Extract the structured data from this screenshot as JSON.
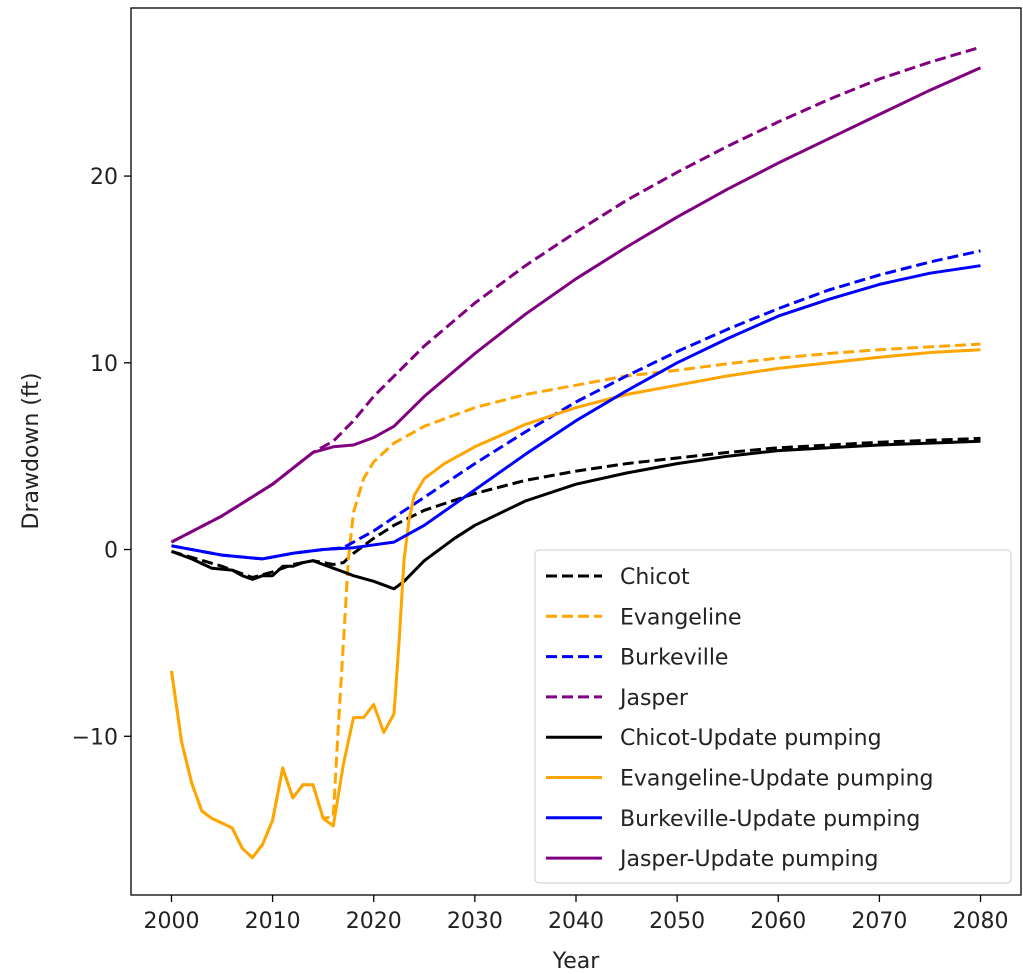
{
  "chart_data": {
    "type": "line",
    "title": "",
    "xlabel": "Year",
    "ylabel": "Drawdown (ft)",
    "xlim": [
      1996,
      2084
    ],
    "ylim": [
      -18.5,
      29
    ],
    "x_ticks": [
      2000,
      2010,
      2020,
      2030,
      2040,
      2050,
      2060,
      2070,
      2080
    ],
    "y_ticks": [
      -10,
      0,
      10,
      20
    ],
    "y_tick_labels": [
      "−10",
      "0",
      "10",
      "20"
    ],
    "grid": false,
    "legend_position": "lower-right",
    "series": [
      {
        "name": "Chicot",
        "color": "#000000",
        "dash": "dashed",
        "points": [
          [
            2000,
            -0.1
          ],
          [
            2005,
            -0.9
          ],
          [
            2008,
            -1.5
          ],
          [
            2010,
            -1.2
          ],
          [
            2012,
            -0.8
          ],
          [
            2014,
            -0.6
          ],
          [
            2016,
            -0.8
          ],
          [
            2017,
            -0.7
          ],
          [
            2018,
            -0.2
          ],
          [
            2020,
            0.6
          ],
          [
            2022,
            1.3
          ],
          [
            2025,
            2.1
          ],
          [
            2030,
            3.0
          ],
          [
            2035,
            3.7
          ],
          [
            2040,
            4.2
          ],
          [
            2045,
            4.6
          ],
          [
            2050,
            4.9
          ],
          [
            2055,
            5.2
          ],
          [
            2060,
            5.45
          ],
          [
            2065,
            5.6
          ],
          [
            2070,
            5.75
          ],
          [
            2075,
            5.85
          ],
          [
            2080,
            5.95
          ]
        ]
      },
      {
        "name": "Evangeline",
        "color": "#ffa500",
        "dash": "dashed",
        "points": [
          [
            2000,
            -6.5
          ],
          [
            2001,
            -10.3
          ],
          [
            2002,
            -12.5
          ],
          [
            2003,
            -14.0
          ],
          [
            2004,
            -14.4
          ],
          [
            2006,
            -14.9
          ],
          [
            2007,
            -16.0
          ],
          [
            2008,
            -16.5
          ],
          [
            2009,
            -15.8
          ],
          [
            2010,
            -14.5
          ],
          [
            2011,
            -11.7
          ],
          [
            2012,
            -13.3
          ],
          [
            2013,
            -12.6
          ],
          [
            2014,
            -12.6
          ],
          [
            2015,
            -14.4
          ],
          [
            2016,
            -14.3
          ],
          [
            2016.5,
            -9.5
          ],
          [
            2017,
            -5.0
          ],
          [
            2017.5,
            -0.5
          ],
          [
            2018,
            2.0
          ],
          [
            2019,
            3.8
          ],
          [
            2020,
            4.7
          ],
          [
            2022,
            5.7
          ],
          [
            2025,
            6.6
          ],
          [
            2030,
            7.6
          ],
          [
            2035,
            8.3
          ],
          [
            2040,
            8.8
          ],
          [
            2045,
            9.3
          ],
          [
            2050,
            9.6
          ],
          [
            2055,
            9.95
          ],
          [
            2060,
            10.25
          ],
          [
            2065,
            10.5
          ],
          [
            2070,
            10.7
          ],
          [
            2075,
            10.85
          ],
          [
            2080,
            11.0
          ]
        ]
      },
      {
        "name": "Burkeville",
        "color": "#0000ff",
        "dash": "dashed",
        "points": [
          [
            2000,
            0.2
          ],
          [
            2005,
            -0.3
          ],
          [
            2009,
            -0.5
          ],
          [
            2012,
            -0.2
          ],
          [
            2015,
            0.0
          ],
          [
            2017,
            0.1
          ],
          [
            2020,
            1.0
          ],
          [
            2025,
            2.8
          ],
          [
            2030,
            4.6
          ],
          [
            2035,
            6.3
          ],
          [
            2040,
            7.9
          ],
          [
            2045,
            9.3
          ],
          [
            2050,
            10.6
          ],
          [
            2055,
            11.8
          ],
          [
            2060,
            12.9
          ],
          [
            2065,
            13.9
          ],
          [
            2070,
            14.7
          ],
          [
            2075,
            15.4
          ],
          [
            2080,
            16.0
          ]
        ]
      },
      {
        "name": "Jasper",
        "color": "#800080",
        "dash": "dashed",
        "points": [
          [
            2000,
            0.4
          ],
          [
            2005,
            1.8
          ],
          [
            2010,
            3.5
          ],
          [
            2014,
            5.2
          ],
          [
            2016,
            5.8
          ],
          [
            2018,
            6.9
          ],
          [
            2020,
            8.2
          ],
          [
            2025,
            10.9
          ],
          [
            2030,
            13.2
          ],
          [
            2035,
            15.2
          ],
          [
            2040,
            17.0
          ],
          [
            2045,
            18.7
          ],
          [
            2050,
            20.2
          ],
          [
            2055,
            21.6
          ],
          [
            2060,
            22.9
          ],
          [
            2065,
            24.1
          ],
          [
            2070,
            25.2
          ],
          [
            2075,
            26.1
          ],
          [
            2080,
            26.9
          ]
        ]
      },
      {
        "name": "Chicot-Update pumping",
        "color": "#000000",
        "dash": "solid",
        "points": [
          [
            2000,
            -0.1
          ],
          [
            2002,
            -0.5
          ],
          [
            2004,
            -1.0
          ],
          [
            2006,
            -1.1
          ],
          [
            2007,
            -1.4
          ],
          [
            2008,
            -1.6
          ],
          [
            2009,
            -1.4
          ],
          [
            2010,
            -1.4
          ],
          [
            2011,
            -0.9
          ],
          [
            2012,
            -0.9
          ],
          [
            2013,
            -0.7
          ],
          [
            2014,
            -0.6
          ],
          [
            2015,
            -0.8
          ],
          [
            2016,
            -1.0
          ],
          [
            2017,
            -1.2
          ],
          [
            2018,
            -1.4
          ],
          [
            2020,
            -1.7
          ],
          [
            2022,
            -2.1
          ],
          [
            2023,
            -1.7
          ],
          [
            2025,
            -0.6
          ],
          [
            2028,
            0.6
          ],
          [
            2030,
            1.3
          ],
          [
            2035,
            2.6
          ],
          [
            2040,
            3.5
          ],
          [
            2045,
            4.1
          ],
          [
            2050,
            4.6
          ],
          [
            2055,
            5.0
          ],
          [
            2060,
            5.3
          ],
          [
            2065,
            5.45
          ],
          [
            2070,
            5.6
          ],
          [
            2075,
            5.7
          ],
          [
            2080,
            5.8
          ]
        ]
      },
      {
        "name": "Evangeline-Update pumping",
        "color": "#ffa500",
        "dash": "solid",
        "points": [
          [
            2000,
            -6.5
          ],
          [
            2001,
            -10.3
          ],
          [
            2002,
            -12.5
          ],
          [
            2003,
            -14.0
          ],
          [
            2004,
            -14.4
          ],
          [
            2006,
            -14.9
          ],
          [
            2007,
            -16.0
          ],
          [
            2008,
            -16.5
          ],
          [
            2009,
            -15.8
          ],
          [
            2010,
            -14.5
          ],
          [
            2011,
            -11.7
          ],
          [
            2012,
            -13.3
          ],
          [
            2013,
            -12.6
          ],
          [
            2014,
            -12.6
          ],
          [
            2015,
            -14.4
          ],
          [
            2016,
            -14.8
          ],
          [
            2017,
            -11.5
          ],
          [
            2018,
            -9.0
          ],
          [
            2019,
            -9.0
          ],
          [
            2020,
            -8.3
          ],
          [
            2021,
            -9.8
          ],
          [
            2022,
            -8.8
          ],
          [
            2022.5,
            -5.0
          ],
          [
            2023,
            -0.5
          ],
          [
            2023.5,
            1.6
          ],
          [
            2024,
            2.9
          ],
          [
            2025,
            3.8
          ],
          [
            2027,
            4.6
          ],
          [
            2030,
            5.5
          ],
          [
            2035,
            6.7
          ],
          [
            2040,
            7.6
          ],
          [
            2045,
            8.3
          ],
          [
            2050,
            8.8
          ],
          [
            2055,
            9.3
          ],
          [
            2060,
            9.7
          ],
          [
            2065,
            10.0
          ],
          [
            2070,
            10.3
          ],
          [
            2075,
            10.55
          ],
          [
            2080,
            10.7
          ]
        ]
      },
      {
        "name": "Burkeville-Update pumping",
        "color": "#0000ff",
        "dash": "solid",
        "points": [
          [
            2000,
            0.2
          ],
          [
            2005,
            -0.3
          ],
          [
            2009,
            -0.5
          ],
          [
            2012,
            -0.2
          ],
          [
            2015,
            0.0
          ],
          [
            2018,
            0.1
          ],
          [
            2022,
            0.4
          ],
          [
            2025,
            1.3
          ],
          [
            2030,
            3.2
          ],
          [
            2035,
            5.1
          ],
          [
            2040,
            6.9
          ],
          [
            2045,
            8.5
          ],
          [
            2050,
            10.0
          ],
          [
            2055,
            11.3
          ],
          [
            2060,
            12.5
          ],
          [
            2065,
            13.4
          ],
          [
            2070,
            14.2
          ],
          [
            2075,
            14.8
          ],
          [
            2080,
            15.2
          ]
        ]
      },
      {
        "name": "Jasper-Update pumping",
        "color": "#800080",
        "dash": "solid",
        "points": [
          [
            2000,
            0.4
          ],
          [
            2005,
            1.8
          ],
          [
            2010,
            3.5
          ],
          [
            2014,
            5.2
          ],
          [
            2016,
            5.5
          ],
          [
            2018,
            5.6
          ],
          [
            2020,
            6.0
          ],
          [
            2022,
            6.6
          ],
          [
            2025,
            8.2
          ],
          [
            2030,
            10.5
          ],
          [
            2035,
            12.6
          ],
          [
            2040,
            14.5
          ],
          [
            2045,
            16.2
          ],
          [
            2050,
            17.8
          ],
          [
            2055,
            19.3
          ],
          [
            2060,
            20.7
          ],
          [
            2065,
            22.0
          ],
          [
            2070,
            23.3
          ],
          [
            2075,
            24.6
          ],
          [
            2080,
            25.8
          ]
        ]
      }
    ]
  }
}
